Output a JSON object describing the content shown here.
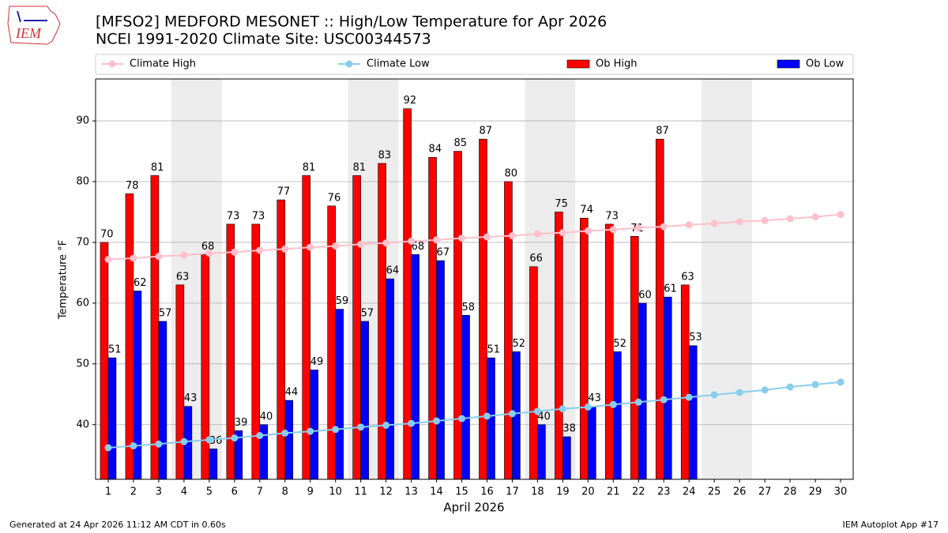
{
  "chart_data": {
    "type": "bar",
    "title": "[MFSO2] MEDFORD MESONET :: High/Low Temperature for Apr 2026",
    "subtitle": "NCEI 1991-2020 Climate Site: USC00344573",
    "x_label": "April 2026",
    "y_label": "Temperature °F",
    "logo_text": "IEM",
    "footer_left": "Generated at 24 Apr 2026 11:12 AM CDT in 0.60s",
    "footer_right": "IEM Autoplot App #17",
    "categories": [
      "1",
      "2",
      "3",
      "4",
      "5",
      "6",
      "7",
      "8",
      "9",
      "10",
      "11",
      "12",
      "13",
      "14",
      "15",
      "16",
      "17",
      "18",
      "19",
      "20",
      "21",
      "22",
      "23",
      "24",
      "25",
      "26",
      "27",
      "28",
      "29",
      "30"
    ],
    "highlight_categories": [
      "4",
      "5",
      "11",
      "12",
      "18",
      "19",
      "25",
      "26"
    ],
    "highlight_color": "#ececec",
    "ylim": [
      31,
      96.9
    ],
    "yticks": [
      40,
      50,
      60,
      70,
      80,
      90
    ],
    "grid": true,
    "series": [
      {
        "name": "Climate High",
        "type": "line",
        "color": "#ffc0cb",
        "values": [
          67.2,
          67.4,
          67.7,
          67.9,
          68.2,
          68.4,
          68.7,
          68.9,
          69.2,
          69.4,
          69.7,
          69.9,
          70.2,
          70.4,
          70.7,
          70.9,
          71.1,
          71.4,
          71.6,
          71.9,
          72.1,
          72.4,
          72.6,
          72.9,
          73.1,
          73.4,
          73.6,
          73.9,
          74.2,
          74.6
        ]
      },
      {
        "name": "Climate Low",
        "type": "line",
        "color": "#87ceeb",
        "values": [
          36.2,
          36.5,
          36.8,
          37.2,
          37.5,
          37.8,
          38.2,
          38.6,
          38.9,
          39.2,
          39.6,
          39.9,
          40.2,
          40.6,
          41.0,
          41.4,
          41.8,
          42.2,
          42.6,
          42.9,
          43.3,
          43.7,
          44.1,
          44.5,
          44.9,
          45.3,
          45.7,
          46.2,
          46.6,
          47.0
        ]
      },
      {
        "name": "Ob High",
        "type": "bar",
        "color": "#ff0000",
        "values": [
          70,
          78,
          81,
          63,
          68,
          73,
          73,
          77,
          81,
          76,
          81,
          83,
          92,
          84,
          85,
          87,
          80,
          66,
          75,
          74,
          73,
          71,
          87,
          63,
          null,
          null,
          null,
          null,
          null,
          null
        ]
      },
      {
        "name": "Ob Low",
        "type": "bar",
        "color": "#0000ff",
        "values": [
          51,
          62,
          57,
          43,
          36,
          39,
          40,
          44,
          49,
          59,
          57,
          64,
          68,
          67,
          58,
          51,
          52,
          40,
          38,
          43,
          52,
          60,
          61,
          53,
          null,
          null,
          null,
          null,
          null,
          null
        ]
      }
    ]
  }
}
